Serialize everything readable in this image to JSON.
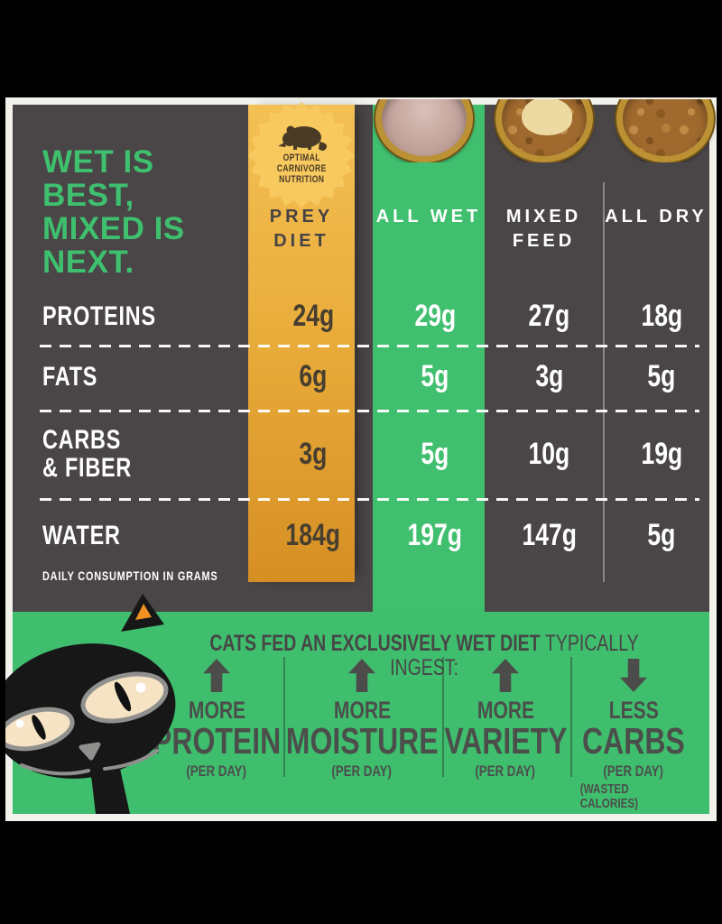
{
  "colors": {
    "card_dark": "#4a4546",
    "green": "#3ec06f",
    "gold_column": "#e8ab3a",
    "gold_badge": "#f7c95e",
    "orange_ear": "#f19022",
    "eye_cream": "#f6e3c4",
    "mat_white": "#f2f1ec",
    "gold_value_text": "#473e30",
    "bottom_text": "#474645"
  },
  "headline": {
    "text": "WET IS\nBEST,\nMIXED IS\nNEXT."
  },
  "badge": {
    "icon": "mouse-icon",
    "text": "OPTIMAL\nCARNIVORE\nNUTRITION"
  },
  "photos": {
    "wet_bowl": "wet-cat-food-bowl-photo",
    "mixed_bowl": "kibble-with-wet-topper-bowl-photo",
    "dry_bowl": "dry-kibble-bowl-photo"
  },
  "table": {
    "columns": [
      {
        "label": "PREY DIET"
      },
      {
        "label": "ALL WET"
      },
      {
        "label": "MIXED FEED"
      },
      {
        "label": "ALL DRY"
      }
    ],
    "rows": [
      {
        "label": "PROTEINS",
        "values": [
          "24g",
          "29g",
          "27g",
          "18g"
        ]
      },
      {
        "label": "FATS",
        "values": [
          "6g",
          "5g",
          "3g",
          "5g"
        ]
      },
      {
        "label": "CARBS\n& FIBER",
        "values": [
          "3g",
          "5g",
          "10g",
          "19g"
        ]
      },
      {
        "label": "WATER",
        "values": [
          "184g",
          "197g",
          "147g",
          "5g"
        ]
      }
    ],
    "footnote": "DAILY CONSUMPTION IN GRAMS"
  },
  "bottom": {
    "title_bold": "CATS FED AN EXCLUSIVELY WET DIET",
    "title_rest": "TYPICALLY INGEST:",
    "benefits": [
      {
        "direction": "up",
        "qualifier": "MORE",
        "nutrient": "PROTEIN",
        "note": "(PER DAY)"
      },
      {
        "direction": "up",
        "qualifier": "MORE",
        "nutrient": "MOISTURE",
        "note": "(PER DAY)"
      },
      {
        "direction": "up",
        "qualifier": "MORE",
        "nutrient": "VARIETY",
        "note": "(PER DAY)"
      },
      {
        "direction": "down",
        "qualifier": "LESS",
        "nutrient": "CARBS",
        "note": "(PER DAY)",
        "note2": "(WASTED CALORIES)"
      }
    ]
  },
  "chart_data": {
    "type": "table",
    "title": "WET IS BEST, MIXED IS NEXT.",
    "unit": "grams per day",
    "columns": [
      "PREY DIET",
      "ALL WET",
      "MIXED FEED",
      "ALL DRY"
    ],
    "rows": [
      {
        "label": "PROTEINS",
        "values_g": [
          24,
          29,
          27,
          18
        ]
      },
      {
        "label": "FATS",
        "values_g": [
          6,
          5,
          3,
          5
        ]
      },
      {
        "label": "CARBS & FIBER",
        "values_g": [
          3,
          5,
          10,
          19
        ]
      },
      {
        "label": "WATER",
        "values_g": [
          184,
          197,
          147,
          5
        ]
      }
    ],
    "footnote": "DAILY CONSUMPTION IN GRAMS"
  }
}
